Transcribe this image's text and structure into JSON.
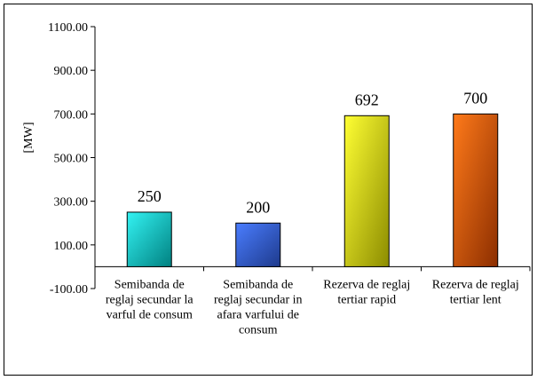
{
  "chart_data": {
    "type": "bar",
    "title": "",
    "xlabel": "",
    "ylabel": "[MW]",
    "ylim": [
      -100,
      1100
    ],
    "yticks": [
      -100,
      100,
      300,
      500,
      700,
      900,
      1100
    ],
    "ytick_labels": [
      "-100.00",
      "100.00",
      "300.00",
      "500.00",
      "700.00",
      "900.00",
      "1100.00"
    ],
    "grid": false,
    "legend": "none",
    "categories": [
      [
        "Semibanda de",
        "reglaj secundar la",
        "varful de consum"
      ],
      [
        "Semibanda de",
        "reglaj secundar in",
        "afara varfului de",
        "consum"
      ],
      [
        "Rezerva de reglaj",
        "tertiar rapid"
      ],
      [
        "Rezerva de reglaj",
        "tertiar lent"
      ]
    ],
    "values": [
      250,
      200,
      692,
      700
    ],
    "value_labels": [
      "250",
      "200",
      "692",
      "700"
    ],
    "colors": [
      {
        "light": "#33f3f3",
        "dark": "#008080"
      },
      {
        "light": "#4a7dff",
        "dark": "#1e3a8c"
      },
      {
        "light": "#ffff33",
        "dark": "#8c8c00"
      },
      {
        "light": "#ff7a1a",
        "dark": "#8c2e00"
      }
    ]
  }
}
